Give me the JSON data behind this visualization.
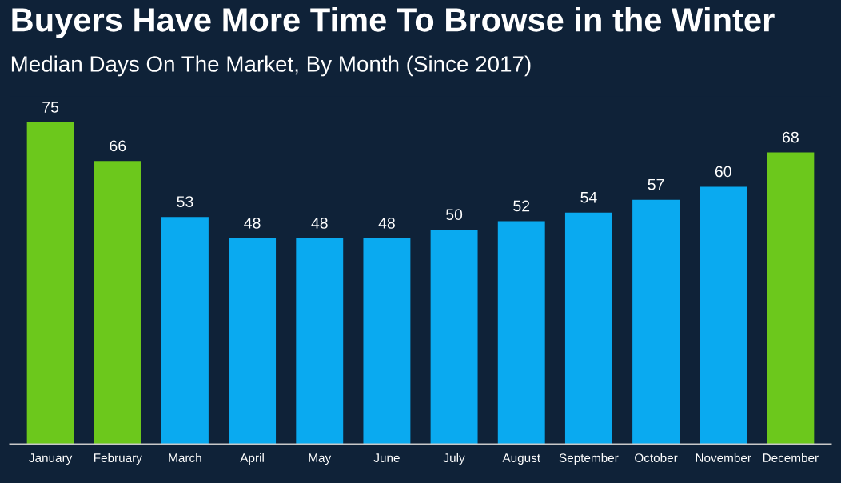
{
  "chart_data": {
    "type": "bar",
    "title": "Buyers Have More Time To Browse in the Winter",
    "subtitle": "Median Days On The Market, By Month (Since 2017)",
    "categories": [
      "January",
      "February",
      "March",
      "April",
      "May",
      "June",
      "July",
      "August",
      "September",
      "October",
      "November",
      "December"
    ],
    "values": [
      75,
      66,
      53,
      48,
      48,
      48,
      50,
      52,
      54,
      57,
      60,
      68
    ],
    "colors": [
      "#6cc81c",
      "#6cc81c",
      "#0aaaf0",
      "#0aaaf0",
      "#0aaaf0",
      "#0aaaf0",
      "#0aaaf0",
      "#0aaaf0",
      "#0aaaf0",
      "#0aaaf0",
      "#0aaaf0",
      "#6cc81c"
    ],
    "data_labels": true,
    "grid": false,
    "legend": false
  }
}
